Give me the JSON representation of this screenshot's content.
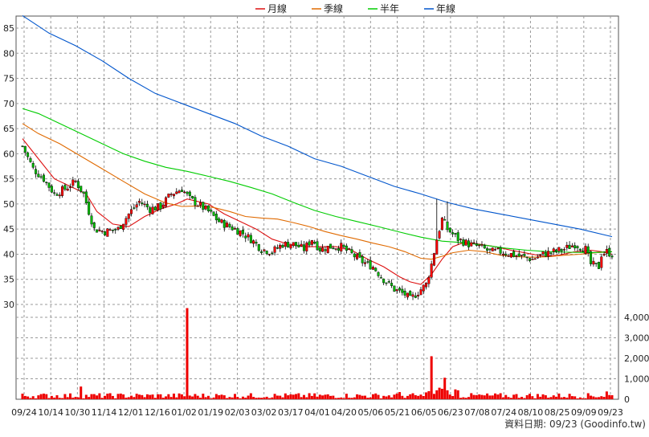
{
  "chart_data": {
    "type": "candlestick",
    "legend": {
      "placement": "top-center",
      "items": [
        {
          "name": "月線",
          "color": "#dd1111"
        },
        {
          "name": "季線",
          "color": "#e06a00"
        },
        {
          "name": "半年",
          "color": "#00cc00"
        },
        {
          "name": "年線",
          "color": "#0055cc"
        }
      ]
    },
    "price_axis": {
      "min": 30,
      "max": 85,
      "ticks": [
        30,
        35,
        40,
        45,
        50,
        55,
        60,
        65,
        70,
        75,
        80,
        85
      ],
      "side": "left"
    },
    "volume_axis": {
      "min": 0,
      "max": 4000,
      "ticks": [
        "0",
        "1,000",
        "2,000",
        "3,000",
        "4,000"
      ],
      "side": "right"
    },
    "x_tick_labels": [
      "09/24",
      "10/14",
      "10/30",
      "11/14",
      "12/01",
      "12/16",
      "01/02",
      "01/19",
      "02/03",
      "03/02",
      "03/17",
      "04/01",
      "04/20",
      "05/06",
      "05/21",
      "06/05",
      "06/23",
      "07/08",
      "07/24",
      "08/10",
      "08/25",
      "09/09",
      "09/23"
    ],
    "grid": true,
    "colors": {
      "up": "#ff0000",
      "down": "#00bb00",
      "volume": "#ee0000",
      "grid": "#9a9a9a"
    },
    "price_path": [
      [
        0,
        61.5
      ],
      [
        4,
        57
      ],
      [
        8,
        55
      ],
      [
        12,
        52
      ],
      [
        16,
        53
      ],
      [
        20,
        54.5
      ],
      [
        23,
        52
      ],
      [
        27,
        45
      ],
      [
        31,
        44.5
      ],
      [
        36,
        45
      ],
      [
        40,
        48
      ],
      [
        44,
        50.5
      ],
      [
        48,
        49
      ],
      [
        52,
        49.5
      ],
      [
        56,
        52
      ],
      [
        60,
        53
      ],
      [
        63,
        51
      ],
      [
        66,
        50
      ],
      [
        70,
        48.5
      ],
      [
        74,
        46.5
      ],
      [
        78,
        45.5
      ],
      [
        82,
        44.5
      ],
      [
        86,
        43
      ],
      [
        90,
        41
      ],
      [
        94,
        40.5
      ],
      [
        98,
        42
      ],
      [
        102,
        42
      ],
      [
        106,
        41
      ],
      [
        109,
        43
      ],
      [
        112,
        41
      ],
      [
        116,
        41.5
      ],
      [
        120,
        41.5
      ],
      [
        124,
        40
      ],
      [
        128,
        38.5
      ],
      [
        132,
        37.5
      ],
      [
        136,
        35
      ],
      [
        140,
        33
      ],
      [
        144,
        32
      ],
      [
        146,
        31
      ],
      [
        149,
        32.5
      ],
      [
        152,
        34
      ],
      [
        154,
        38
      ],
      [
        156,
        43
      ],
      [
        158,
        47
      ],
      [
        160,
        45
      ],
      [
        162,
        44
      ],
      [
        164,
        43
      ],
      [
        168,
        42
      ],
      [
        172,
        41.5
      ],
      [
        176,
        40.5
      ],
      [
        180,
        40.5
      ],
      [
        184,
        40
      ],
      [
        188,
        39.5
      ],
      [
        192,
        39
      ],
      [
        196,
        40
      ],
      [
        200,
        40.5
      ],
      [
        204,
        41
      ],
      [
        208,
        42
      ],
      [
        212,
        41
      ],
      [
        214,
        38
      ],
      [
        217,
        37.5
      ],
      [
        218,
        40
      ],
      [
        220,
        40.5
      ],
      [
        222,
        40
      ]
    ],
    "spikes": [
      {
        "index": 156,
        "high": 51
      },
      {
        "index": 160,
        "high": 50.5
      }
    ],
    "moving_averages": [
      {
        "name": "月線",
        "points": [
          [
            0,
            63
          ],
          [
            6,
            59
          ],
          [
            12,
            55
          ],
          [
            18,
            53.5
          ],
          [
            24,
            52
          ],
          [
            28,
            48.5
          ],
          [
            34,
            46
          ],
          [
            40,
            45.5
          ],
          [
            46,
            47.5
          ],
          [
            52,
            49
          ],
          [
            58,
            50
          ],
          [
            62,
            51
          ],
          [
            66,
            50.5
          ],
          [
            70,
            50
          ],
          [
            76,
            48
          ],
          [
            82,
            46.5
          ],
          [
            88,
            45
          ],
          [
            94,
            43
          ],
          [
            100,
            42
          ],
          [
            106,
            41.5
          ],
          [
            112,
            41.5
          ],
          [
            118,
            41.5
          ],
          [
            124,
            40.8
          ],
          [
            130,
            39
          ],
          [
            136,
            37.5
          ],
          [
            142,
            35.5
          ],
          [
            146,
            34.5
          ],
          [
            150,
            34
          ],
          [
            154,
            36
          ],
          [
            158,
            39
          ],
          [
            162,
            41.5
          ],
          [
            166,
            42.3
          ],
          [
            172,
            42
          ],
          [
            178,
            41.5
          ],
          [
            184,
            40.8
          ],
          [
            190,
            40.2
          ],
          [
            196,
            39.6
          ],
          [
            202,
            39.8
          ],
          [
            208,
            40.5
          ],
          [
            214,
            40.8
          ],
          [
            218,
            40.5
          ],
          [
            222,
            40
          ]
        ]
      },
      {
        "name": "季線",
        "points": [
          [
            0,
            66
          ],
          [
            6,
            64
          ],
          [
            14,
            62
          ],
          [
            22,
            59.5
          ],
          [
            30,
            57
          ],
          [
            38,
            54.5
          ],
          [
            46,
            52
          ],
          [
            54,
            50.2
          ],
          [
            60,
            49.5
          ],
          [
            66,
            49.6
          ],
          [
            72,
            49.3
          ],
          [
            78,
            48.5
          ],
          [
            84,
            47.5
          ],
          [
            90,
            47.2
          ],
          [
            96,
            47
          ],
          [
            102,
            46.3
          ],
          [
            108,
            45.5
          ],
          [
            114,
            44.5
          ],
          [
            120,
            43.7
          ],
          [
            126,
            43
          ],
          [
            132,
            42.2
          ],
          [
            138,
            41.5
          ],
          [
            144,
            40.5
          ],
          [
            150,
            39.2
          ],
          [
            154,
            39
          ],
          [
            158,
            39.6
          ],
          [
            162,
            40.3
          ],
          [
            168,
            40.8
          ],
          [
            174,
            40.5
          ],
          [
            180,
            39.8
          ],
          [
            186,
            39.5
          ],
          [
            192,
            39.4
          ],
          [
            198,
            39.5
          ],
          [
            204,
            39.8
          ],
          [
            210,
            40
          ],
          [
            216,
            40.3
          ],
          [
            222,
            40.5
          ]
        ]
      },
      {
        "name": "半年",
        "points": [
          [
            0,
            69
          ],
          [
            6,
            68
          ],
          [
            14,
            66
          ],
          [
            22,
            64
          ],
          [
            30,
            62
          ],
          [
            38,
            60
          ],
          [
            46,
            58.5
          ],
          [
            54,
            57.3
          ],
          [
            62,
            56.5
          ],
          [
            70,
            55.5
          ],
          [
            78,
            54.5
          ],
          [
            86,
            53.3
          ],
          [
            94,
            52
          ],
          [
            102,
            50.3
          ],
          [
            110,
            48.7
          ],
          [
            118,
            47.5
          ],
          [
            126,
            46.5
          ],
          [
            134,
            45.5
          ],
          [
            142,
            44.4
          ],
          [
            150,
            43.4
          ],
          [
            158,
            42.6
          ],
          [
            166,
            42.3
          ],
          [
            174,
            41.8
          ],
          [
            182,
            41.2
          ],
          [
            190,
            40.8
          ],
          [
            198,
            40.5
          ],
          [
            206,
            40.4
          ],
          [
            214,
            40.3
          ],
          [
            222,
            40.5
          ]
        ]
      },
      {
        "name": "年線",
        "points": [
          [
            0,
            87.5
          ],
          [
            10,
            84
          ],
          [
            20,
            81.5
          ],
          [
            30,
            78.5
          ],
          [
            40,
            75
          ],
          [
            50,
            72
          ],
          [
            60,
            70
          ],
          [
            70,
            68
          ],
          [
            80,
            66
          ],
          [
            90,
            63.5
          ],
          [
            100,
            61.5
          ],
          [
            110,
            59
          ],
          [
            120,
            57.5
          ],
          [
            130,
            55.5
          ],
          [
            140,
            53.5
          ],
          [
            150,
            52
          ],
          [
            160,
            50.3
          ],
          [
            170,
            49
          ],
          [
            180,
            48
          ],
          [
            190,
            47
          ],
          [
            200,
            46
          ],
          [
            210,
            45
          ],
          [
            222,
            43.5
          ]
        ]
      }
    ],
    "volume_spikes": [
      {
        "index": 62,
        "value": 4450
      },
      {
        "index": 154,
        "value": 2100
      },
      {
        "index": 159,
        "value": 1050
      },
      {
        "index": 142,
        "value": 350
      },
      {
        "index": 22,
        "value": 620
      },
      {
        "index": 220,
        "value": 380
      }
    ],
    "footer": "資料日期: 09/23 (Goodinfo.tw)"
  }
}
